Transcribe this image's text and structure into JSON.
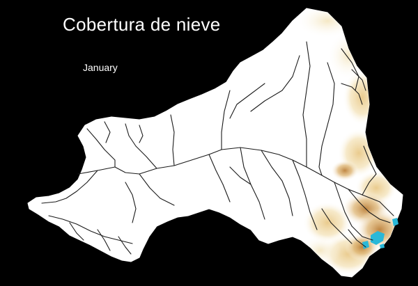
{
  "map": {
    "title": "Cobertura de nieve",
    "month": "January",
    "colors": {
      "background": "#000000",
      "land": "#ffffff",
      "rivers": "#1a1a1a",
      "snow_light": "#f4e3b0",
      "snow_mid": "#e8c47c",
      "snow_dark": "#c0873a",
      "water_cyan": "#2ab8d8"
    }
  }
}
